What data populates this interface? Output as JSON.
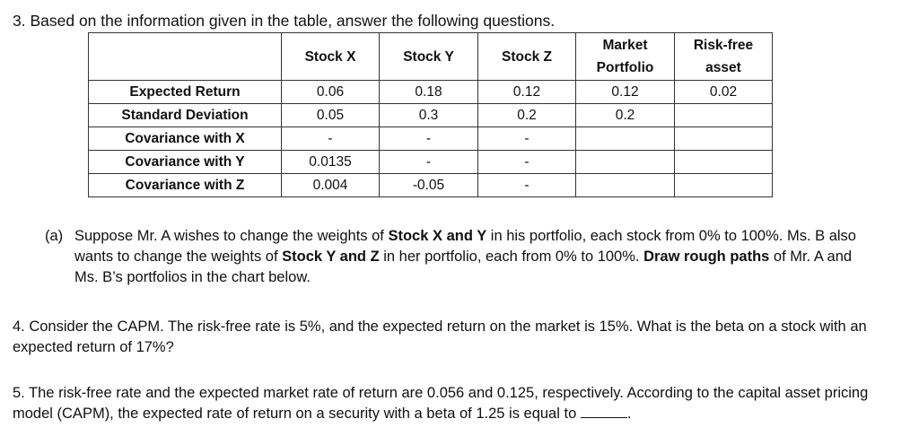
{
  "q3": {
    "title": "3. Based on the information given in the table, answer the following questions."
  },
  "table": {
    "headers": [
      "",
      "Stock X",
      "Stock Y",
      "Stock Z",
      "Market Portfolio",
      "Risk-free asset"
    ],
    "rows": [
      {
        "label": "Expected Return",
        "cells": [
          "0.06",
          "0.18",
          "0.12",
          "0.12",
          "0.02"
        ]
      },
      {
        "label": "Standard Deviation",
        "cells": [
          "0.05",
          "0.3",
          "0.2",
          "0.2",
          ""
        ]
      },
      {
        "label": "Covariance with X",
        "cells": [
          "-",
          "-",
          "-",
          "",
          ""
        ]
      },
      {
        "label": "Covariance with Y",
        "cells": [
          "0.0135",
          "-",
          "-",
          "",
          ""
        ]
      },
      {
        "label": "Covariance with Z",
        "cells": [
          "0.004",
          "-0.05",
          "-",
          "",
          ""
        ]
      }
    ]
  },
  "qa": {
    "tag": "(a)",
    "t1": "Suppose Mr. A wishes to change the weights of ",
    "b1": "Stock X and Y",
    "t2": " in his portfolio, each stock from 0% to 100%. Ms. B also wants to change the weights of ",
    "b2": "Stock Y and Z",
    "t3": " in her portfolio, each from 0% to 100%. ",
    "b3": "Draw rough paths",
    "t4": " of Mr. A and Ms. B’s portfolios in the chart below."
  },
  "q4": {
    "text": "4. Consider the CAPM. The risk-free rate is 5%, and the expected return on the market is 15%. What is the beta on a stock with an expected return of 17%?"
  },
  "q5": {
    "text": "5. The risk-free rate and the expected market rate of return are 0.056 and 0.125, respectively. According to the capital asset pricing model (CAPM), the expected rate of return on a security with a beta of 1.25 is equal to",
    "end": "."
  }
}
